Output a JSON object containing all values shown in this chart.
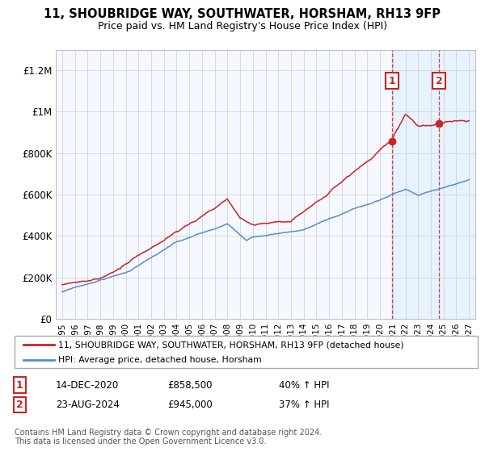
{
  "title": "11, SHOUBRIDGE WAY, SOUTHWATER, HORSHAM, RH13 9FP",
  "subtitle": "Price paid vs. HM Land Registry's House Price Index (HPI)",
  "legend_line1": "11, SHOUBRIDGE WAY, SOUTHWATER, HORSHAM, RH13 9FP (detached house)",
  "legend_line2": "HPI: Average price, detached house, Horsham",
  "annotation1_label": "1",
  "annotation1_date": "14-DEC-2020",
  "annotation1_price": "£858,500",
  "annotation1_pct": "40% ↑ HPI",
  "annotation2_label": "2",
  "annotation2_date": "23-AUG-2024",
  "annotation2_price": "£945,000",
  "annotation2_pct": "37% ↑ HPI",
  "footnote": "Contains HM Land Registry data © Crown copyright and database right 2024.\nThis data is licensed under the Open Government Licence v3.0.",
  "hpi_color": "#5b8bc9",
  "price_color": "#cc2222",
  "background_color": "#ffffff",
  "grid_color": "#cccccc",
  "shade_color": "#ddeeff",
  "ylim": [
    0,
    1300000
  ],
  "yticks": [
    0,
    200000,
    400000,
    600000,
    800000,
    1000000,
    1200000
  ],
  "ytick_labels": [
    "£0",
    "£200K",
    "£400K",
    "£600K",
    "£800K",
    "£1M",
    "£1.2M"
  ],
  "sale1_x": 2020.96,
  "sale1_y": 858500,
  "sale2_x": 2024.64,
  "sale2_y": 945000,
  "xmin": 1994.5,
  "xmax": 2027.5
}
